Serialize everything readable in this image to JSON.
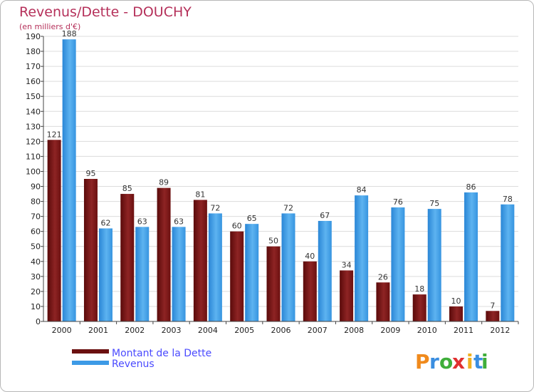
{
  "chart_data": {
    "type": "bar",
    "title": "Revenus/Dette - DOUCHY",
    "subtitle": "(en milliers d'€)",
    "categories": [
      "2000",
      "2001",
      "2002",
      "2003",
      "2004",
      "2005",
      "2006",
      "2007",
      "2008",
      "2009",
      "2010",
      "2011",
      "2012"
    ],
    "series": [
      {
        "name": "Montant de la Dette",
        "color": "#7a1414",
        "values": [
          121,
          95,
          85,
          89,
          81,
          60,
          50,
          40,
          34,
          26,
          18,
          10,
          7
        ]
      },
      {
        "name": "Revenus",
        "color": "#3d9ae6",
        "values": [
          188,
          62,
          63,
          63,
          72,
          65,
          72,
          67,
          84,
          76,
          75,
          86,
          78
        ]
      }
    ],
    "ylim": [
      0,
      190
    ],
    "yticks": [
      0,
      10,
      20,
      30,
      40,
      50,
      60,
      70,
      80,
      90,
      100,
      110,
      120,
      130,
      140,
      150,
      160,
      170,
      180,
      190
    ],
    "grid": true,
    "legend": "bottom-left"
  },
  "branding": {
    "logo_letters": [
      "P",
      "r",
      "o",
      "x",
      "i",
      "t",
      "i"
    ],
    "logo_colors": [
      "#f08a1c",
      "#3a8ee0",
      "#3fae3a",
      "#e03030",
      "#f0b020",
      "#3a8ee0",
      "#3fae3a"
    ]
  }
}
